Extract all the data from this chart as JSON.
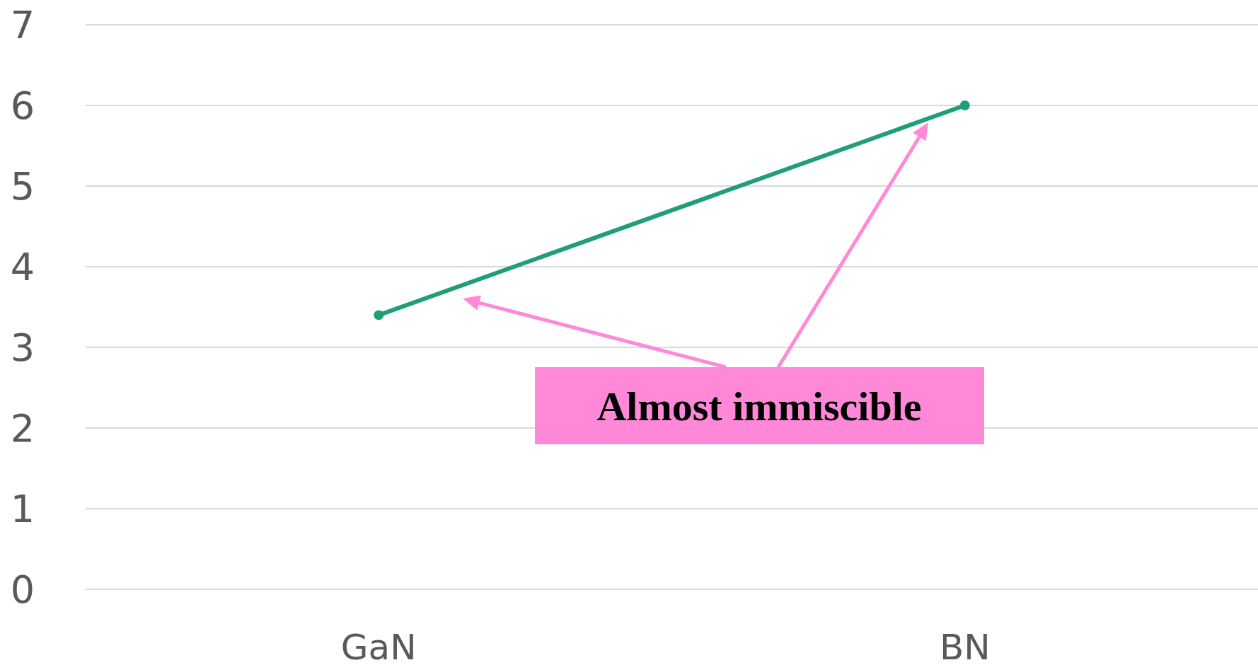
{
  "chart_data": {
    "type": "line",
    "categories": [
      "GaN",
      "BN"
    ],
    "series": [
      {
        "color": "#1f9e78",
        "values": [
          3.4,
          6.0
        ]
      }
    ],
    "ylim": [
      0,
      7
    ],
    "yticks": [
      0,
      1,
      2,
      3,
      4,
      5,
      6,
      7
    ],
    "grid": "y",
    "marker": "circle",
    "line_style": "solid",
    "annotations": [
      "Almost immiscible"
    ]
  }
}
